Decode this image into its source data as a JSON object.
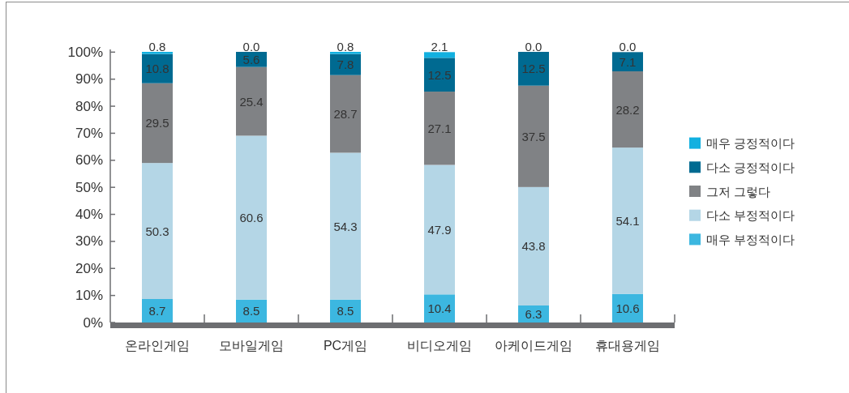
{
  "chart_data": {
    "type": "bar",
    "stacked": true,
    "categories": [
      "온라인게임",
      "모바일게임",
      "PC게임",
      "비디오게임",
      "아케이드게임",
      "휴대용게임"
    ],
    "series": [
      {
        "name": "매우 부정적이다",
        "color": "#3cb7e0",
        "values": [
          8.7,
          8.5,
          8.5,
          10.4,
          6.3,
          10.6
        ],
        "value_labels": [
          "8.7",
          "8.5",
          "8.5",
          "10.4",
          "6.3",
          "10.6"
        ]
      },
      {
        "name": "다소 부정적이다",
        "color": "#b4d6e6",
        "values": [
          50.3,
          60.6,
          54.3,
          47.9,
          43.8,
          54.1
        ],
        "value_labels": [
          "50.3",
          "60.6",
          "54.3",
          "47.9",
          "43.8",
          "54.1"
        ]
      },
      {
        "name": "그저 그렇다",
        "color": "#808285",
        "values": [
          29.5,
          25.4,
          28.7,
          27.1,
          37.5,
          28.2
        ],
        "value_labels": [
          "29.5",
          "25.4",
          "28.7",
          "27.1",
          "37.5",
          "28.2"
        ]
      },
      {
        "name": "다소 긍정적이다",
        "color": "#006a91",
        "values": [
          10.8,
          5.6,
          7.8,
          12.5,
          12.5,
          7.1
        ],
        "value_labels": [
          "10.8",
          "5.6",
          "7.8",
          "12.5",
          "12.5",
          "7.1"
        ]
      },
      {
        "name": "매우 긍정적이다",
        "color": "#12b0e0",
        "values": [
          0.8,
          0.0,
          0.8,
          2.1,
          0.0,
          0.0
        ],
        "value_labels": [
          "0.8",
          "0.0",
          "0.8",
          "2.1",
          "0.0",
          "0.0"
        ]
      }
    ],
    "ylim": [
      0,
      101
    ],
    "yticks": [
      {
        "value": 0,
        "label": "0%"
      },
      {
        "value": 10,
        "label": "10%"
      },
      {
        "value": 20,
        "label": "20%"
      },
      {
        "value": 30,
        "label": "30%"
      },
      {
        "value": 40,
        "label": "40%"
      },
      {
        "value": 50,
        "label": "50%"
      },
      {
        "value": 60,
        "label": "60%"
      },
      {
        "value": 70,
        "label": "70%"
      },
      {
        "value": 80,
        "label": "80%"
      },
      {
        "value": 90,
        "label": "90%"
      },
      {
        "value": 100,
        "label": "100%"
      }
    ],
    "legend": "right"
  }
}
